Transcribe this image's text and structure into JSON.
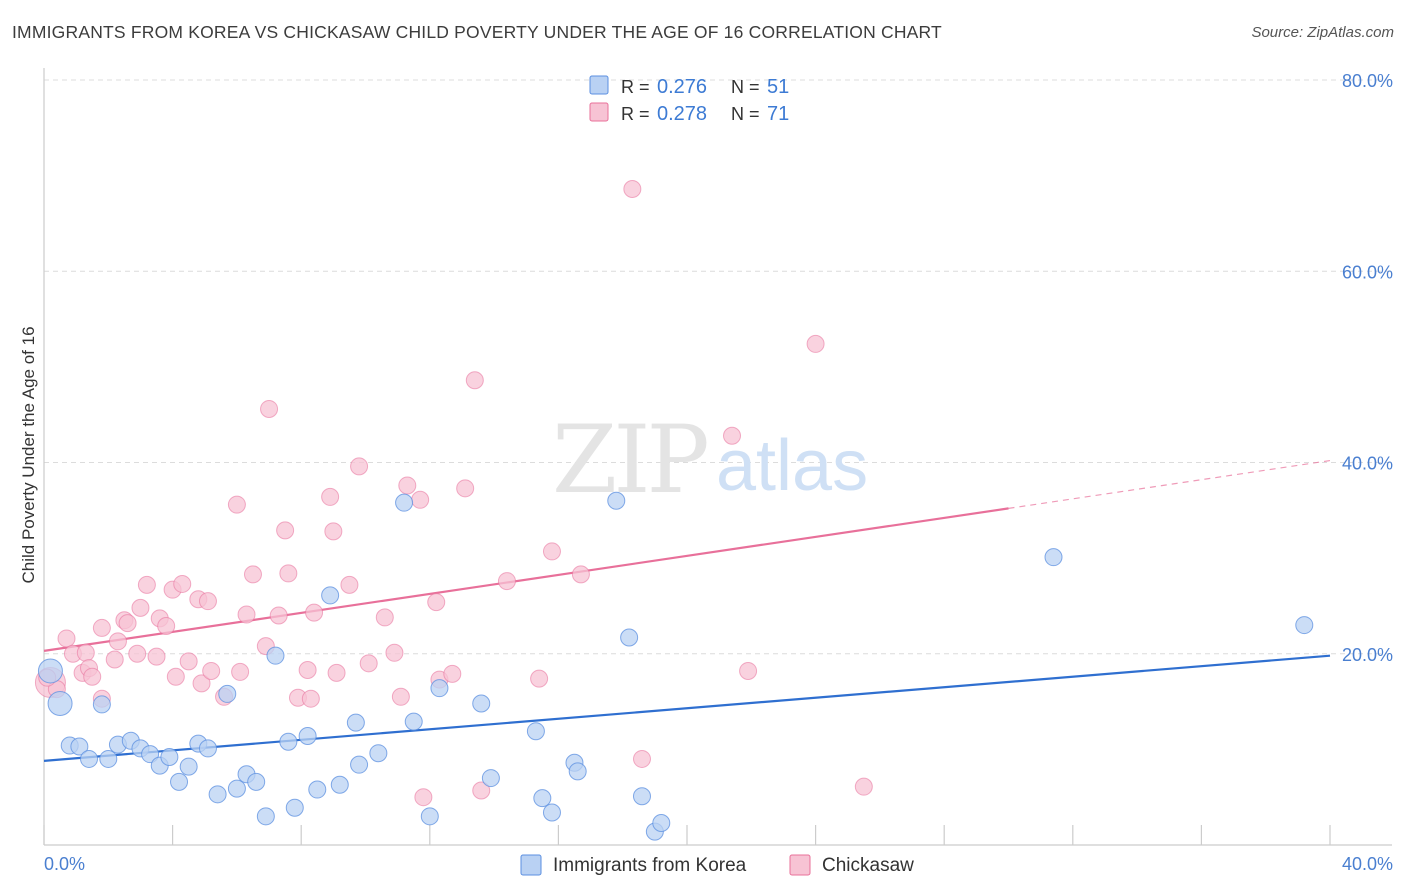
{
  "title": "IMMIGRANTS FROM KOREA VS CHICKASAW CHILD POVERTY UNDER THE AGE OF 16 CORRELATION CHART",
  "source": "Source: ZipAtlas.com",
  "watermark": {
    "zip": "ZIP",
    "atlas": "atlas"
  },
  "colors": {
    "blue": "#5b8fe0",
    "blue_fill": "#b9d1f3",
    "pink": "#e8709a",
    "pink_fill": "#f7c3d4",
    "tick": "#4a7fd0"
  },
  "legend": {
    "r_label": "R =",
    "n_label": "N =",
    "rows": [
      {
        "r": "0.276",
        "n": "51"
      },
      {
        "r": "0.278",
        "n": "71"
      }
    ]
  },
  "bottom_legend": [
    "Immigrants from Korea",
    "Chickasaw"
  ],
  "chart_data": {
    "type": "scatter",
    "title": "IMMIGRANTS FROM KOREA VS CHICKASAW CHILD POVERTY UNDER THE AGE OF 16 CORRELATION CHART",
    "xlabel": "",
    "ylabel": "Child Poverty Under the Age of 16",
    "xlim": [
      0,
      40
    ],
    "ylim": [
      0,
      80
    ],
    "x_tick_labels": [
      "0.0%",
      "40.0%"
    ],
    "y_tick_labels": [
      "20.0%",
      "40.0%",
      "60.0%",
      "80.0%"
    ],
    "y_ticks": [
      20,
      40,
      60,
      80
    ],
    "grid": true,
    "legend_position": "top-center",
    "series": [
      {
        "name": "Immigrants from Korea",
        "color": "#5b8fe0",
        "R": 0.276,
        "N": 51,
        "trend": {
          "x": [
            0,
            40
          ],
          "y": [
            8.8,
            19.8
          ]
        },
        "points": [
          [
            0.2,
            18.2
          ],
          [
            0.5,
            14.8
          ],
          [
            0.8,
            10.4
          ],
          [
            1.1,
            10.3
          ],
          [
            1.4,
            9.0
          ],
          [
            2.0,
            9.0
          ],
          [
            1.8,
            14.7
          ],
          [
            2.3,
            10.5
          ],
          [
            2.7,
            10.9
          ],
          [
            3.0,
            10.1
          ],
          [
            3.3,
            9.5
          ],
          [
            3.6,
            8.3
          ],
          [
            3.9,
            9.2
          ],
          [
            4.2,
            6.6
          ],
          [
            4.5,
            8.2
          ],
          [
            4.8,
            10.6
          ],
          [
            5.1,
            10.1
          ],
          [
            5.4,
            5.3
          ],
          [
            5.7,
            15.8
          ],
          [
            6.0,
            5.9
          ],
          [
            6.3,
            7.4
          ],
          [
            6.6,
            6.6
          ],
          [
            6.9,
            3.0
          ],
          [
            7.2,
            19.8
          ],
          [
            7.6,
            10.8
          ],
          [
            7.8,
            3.9
          ],
          [
            8.2,
            11.4
          ],
          [
            8.5,
            5.8
          ],
          [
            8.9,
            26.1
          ],
          [
            9.2,
            6.3
          ],
          [
            9.7,
            12.8
          ],
          [
            9.8,
            8.4
          ],
          [
            10.4,
            9.6
          ],
          [
            11.2,
            35.8
          ],
          [
            11.5,
            12.9
          ],
          [
            12.0,
            3.0
          ],
          [
            12.3,
            16.4
          ],
          [
            13.6,
            14.8
          ],
          [
            13.9,
            7.0
          ],
          [
            15.3,
            11.9
          ],
          [
            15.5,
            4.9
          ],
          [
            15.8,
            3.4
          ],
          [
            16.5,
            8.6
          ],
          [
            16.6,
            7.7
          ],
          [
            17.8,
            36.0
          ],
          [
            18.2,
            21.7
          ],
          [
            18.6,
            5.1
          ],
          [
            19.0,
            1.4
          ],
          [
            19.2,
            2.3
          ],
          [
            31.4,
            30.1
          ],
          [
            39.2,
            23.0
          ]
        ]
      },
      {
        "name": "Chickasaw",
        "color": "#e8709a",
        "R": 0.278,
        "N": 71,
        "trend": {
          "x": [
            0,
            30
          ],
          "y": [
            20.3,
            35.2
          ]
        },
        "trend_dashed": {
          "x": [
            30,
            40
          ],
          "y": [
            35.2,
            40.2
          ]
        },
        "points": [
          [
            0.2,
            17.0
          ],
          [
            0.4,
            16.3
          ],
          [
            0.7,
            21.6
          ],
          [
            0.9,
            20.0
          ],
          [
            1.2,
            18.0
          ],
          [
            1.3,
            20.1
          ],
          [
            1.4,
            18.5
          ],
          [
            1.5,
            17.6
          ],
          [
            1.8,
            15.3
          ],
          [
            1.8,
            22.7
          ],
          [
            2.2,
            19.4
          ],
          [
            2.3,
            21.3
          ],
          [
            2.5,
            23.5
          ],
          [
            2.6,
            23.2
          ],
          [
            2.9,
            20.0
          ],
          [
            3.0,
            24.8
          ],
          [
            3.2,
            27.2
          ],
          [
            3.5,
            19.7
          ],
          [
            3.6,
            23.7
          ],
          [
            3.8,
            22.9
          ],
          [
            4.0,
            26.7
          ],
          [
            4.1,
            17.6
          ],
          [
            4.3,
            27.3
          ],
          [
            4.5,
            19.2
          ],
          [
            4.8,
            25.7
          ],
          [
            4.9,
            16.9
          ],
          [
            5.2,
            18.2
          ],
          [
            5.1,
            25.5
          ],
          [
            5.6,
            15.5
          ],
          [
            6.0,
            35.6
          ],
          [
            6.1,
            18.1
          ],
          [
            6.3,
            24.1
          ],
          [
            6.5,
            28.3
          ],
          [
            7.0,
            45.6
          ],
          [
            6.9,
            20.8
          ],
          [
            7.3,
            24.0
          ],
          [
            7.5,
            32.9
          ],
          [
            7.6,
            28.4
          ],
          [
            7.9,
            15.4
          ],
          [
            8.2,
            18.3
          ],
          [
            8.3,
            15.3
          ],
          [
            8.4,
            24.3
          ],
          [
            8.9,
            36.4
          ],
          [
            9.0,
            32.8
          ],
          [
            9.1,
            18.0
          ],
          [
            9.5,
            27.2
          ],
          [
            9.8,
            39.6
          ],
          [
            10.1,
            19.0
          ],
          [
            10.6,
            23.8
          ],
          [
            10.9,
            20.1
          ],
          [
            11.1,
            15.5
          ],
          [
            11.3,
            37.6
          ],
          [
            11.7,
            36.1
          ],
          [
            11.8,
            5.0
          ],
          [
            12.2,
            25.4
          ],
          [
            12.3,
            17.3
          ],
          [
            12.7,
            17.9
          ],
          [
            13.1,
            37.3
          ],
          [
            13.4,
            48.6
          ],
          [
            13.6,
            5.7
          ],
          [
            14.4,
            27.6
          ],
          [
            15.4,
            17.4
          ],
          [
            15.8,
            30.7
          ],
          [
            16.7,
            28.3
          ],
          [
            18.3,
            68.6
          ],
          [
            18.6,
            9.0
          ],
          [
            21.4,
            42.8
          ],
          [
            21.9,
            18.2
          ],
          [
            24.0,
            52.4
          ],
          [
            25.5,
            6.1
          ],
          [
            0.1,
            17.5
          ]
        ]
      }
    ]
  }
}
